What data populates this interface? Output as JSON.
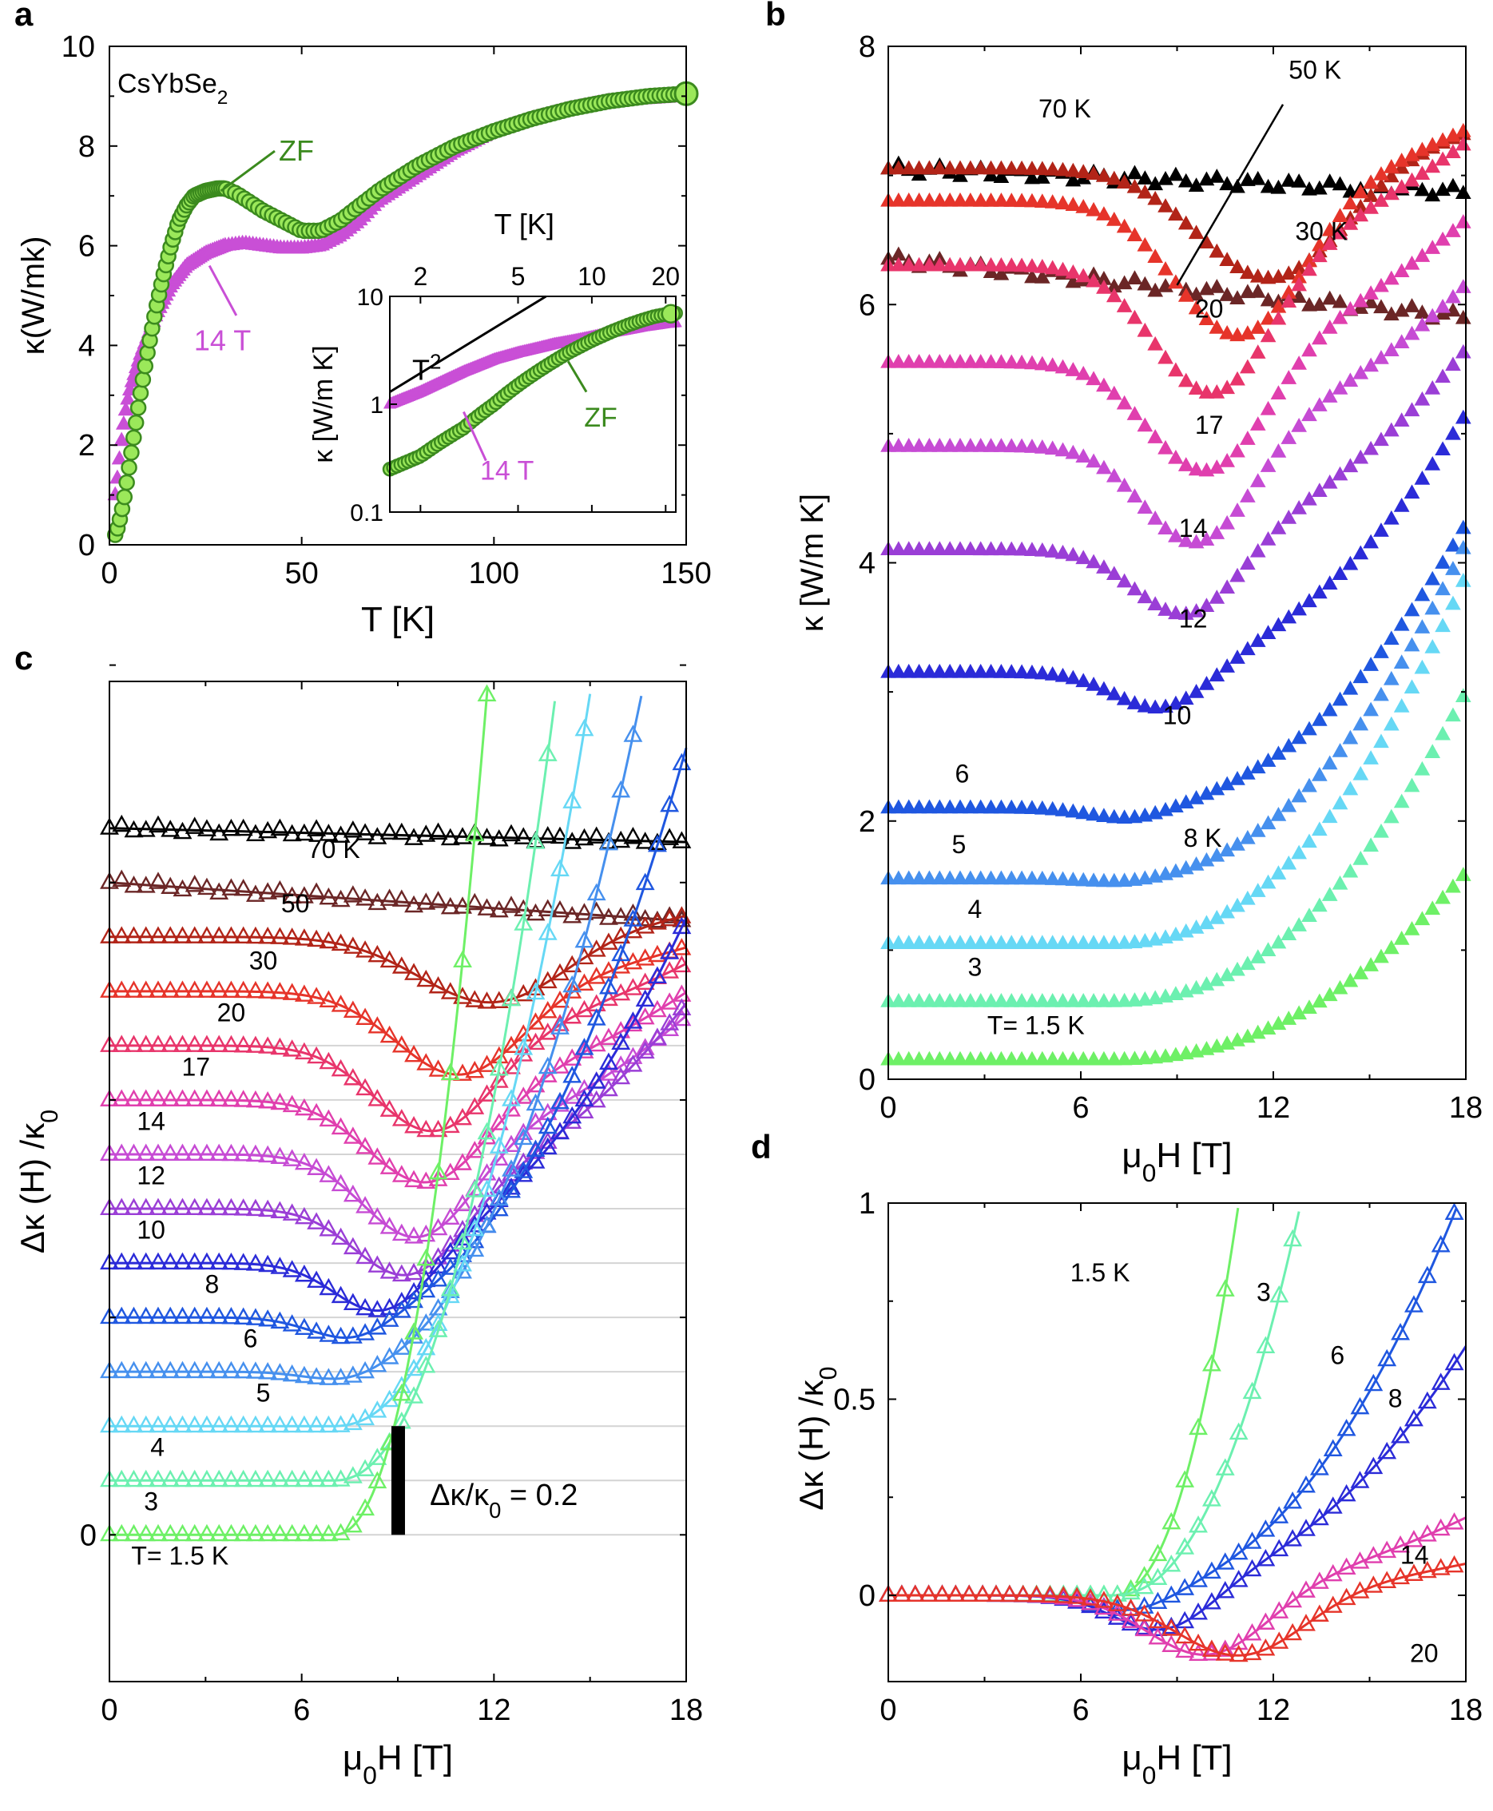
{
  "chart_data": [
    {
      "panel": "a",
      "type": "scatter",
      "title": "CsYbSe2",
      "title_parts": [
        "CsYbSe",
        "2"
      ],
      "xlabel": "T [K]",
      "ylabel_parts": [
        "κ",
        "(W/mk)"
      ],
      "xlim": [
        0,
        150
      ],
      "ylim": [
        0,
        10
      ],
      "xticks": [
        0,
        50,
        100,
        150
      ],
      "yticks": [
        0,
        2,
        4,
        6,
        8,
        10
      ],
      "series": [
        {
          "name": "ZF",
          "color": "#3b8a1e",
          "fill": "#9be85a",
          "marker": "circle",
          "x": [
            1.5,
            2,
            3,
            4,
            5,
            6,
            8,
            10,
            12,
            14,
            16,
            18,
            20,
            22,
            25,
            28,
            30,
            33,
            36,
            40,
            45,
            50,
            55,
            60,
            65,
            70,
            80,
            90,
            100,
            110,
            120,
            130,
            140,
            150
          ],
          "y": [
            0.2,
            0.3,
            0.6,
            1.0,
            1.5,
            2.0,
            3.0,
            3.9,
            4.7,
            5.4,
            6.0,
            6.5,
            6.8,
            7.0,
            7.1,
            7.15,
            7.15,
            7.05,
            6.9,
            6.7,
            6.5,
            6.3,
            6.3,
            6.5,
            6.8,
            7.1,
            7.6,
            8.0,
            8.3,
            8.55,
            8.75,
            8.9,
            9.0,
            9.05
          ]
        },
        {
          "name": "14 T",
          "color": "#b037c0",
          "fill": "#c94fd6",
          "marker": "triangle",
          "x": [
            1.5,
            2,
            3,
            4,
            5,
            6,
            8,
            10,
            12,
            14,
            16,
            18,
            20,
            25,
            30,
            35,
            40,
            45,
            50,
            55,
            60,
            65,
            70,
            80,
            90,
            100,
            110,
            120,
            130,
            140,
            150
          ],
          "y": [
            1.0,
            1.3,
            2.0,
            2.6,
            3.0,
            3.3,
            3.8,
            4.2,
            4.6,
            4.9,
            5.2,
            5.4,
            5.6,
            5.85,
            6.0,
            6.05,
            6.0,
            5.95,
            5.95,
            6.0,
            6.2,
            6.5,
            6.9,
            7.4,
            7.9,
            8.3,
            8.55,
            8.75,
            8.9,
            8.95,
            9.0
          ]
        }
      ],
      "annotations": [
        "ZF",
        "14 T"
      ],
      "inset": {
        "type": "line",
        "xlabel": "T [K]",
        "ylabel": "κ [W/m K]",
        "xscale": "log",
        "yscale": "log",
        "xlim": [
          1.5,
          22
        ],
        "ylim": [
          0.1,
          10
        ],
        "xticks": [
          2,
          5,
          10,
          20
        ],
        "yticks": [
          0.1,
          1,
          10
        ],
        "ytick_labels": [
          "0.1",
          "1",
          "10"
        ],
        "series": [
          {
            "name": "ZF",
            "color": "#3b8a1e",
            "fill": "#9be85a",
            "x": [
              1.5,
              2,
              3,
              4,
              5,
              6,
              7,
              8,
              10,
              12,
              14,
              16,
              18,
              20,
              22
            ],
            "y": [
              0.25,
              0.33,
              0.6,
              1.0,
              1.5,
              2.0,
              2.5,
              3.0,
              3.9,
              4.7,
              5.4,
              6.0,
              6.5,
              6.8,
              7.0
            ]
          },
          {
            "name": "14 T",
            "color": "#b037c0",
            "fill": "#c94fd6",
            "x": [
              1.5,
              2,
              3,
              4,
              5,
              6,
              7,
              8,
              10,
              12,
              14,
              16,
              18,
              20,
              22
            ],
            "y": [
              1.0,
              1.3,
              2.0,
              2.6,
              3.0,
              3.3,
              3.6,
              3.8,
              4.2,
              4.6,
              4.9,
              5.2,
              5.4,
              5.6,
              5.7
            ]
          },
          {
            "name": "T2",
            "color": "#000000",
            "x": [
              1.5,
              6.5
            ],
            "y": [
              1.3,
              24.4
            ]
          }
        ],
        "annotations": [
          "T",
          "2",
          "ZF",
          "14 T"
        ]
      }
    },
    {
      "panel": "b",
      "type": "line",
      "xlabel_parts": [
        "μ",
        "0",
        "H [T]"
      ],
      "ylabel": "κ [W/m K]",
      "xlim": [
        0,
        18
      ],
      "ylim": [
        0,
        8
      ],
      "xticks": [
        0,
        6,
        12,
        18
      ],
      "yticks": [
        0,
        2,
        4,
        6,
        8
      ],
      "series": [
        {
          "name": "70 K",
          "color": "#000000",
          "x": [
            0,
            18
          ],
          "base": 7.05,
          "dip": 0.0,
          "min": 10,
          "width": 3.0,
          "rise": 0.0,
          "slope": -0.01
        },
        {
          "name": "50 K",
          "color": "#6b2626",
          "x": [
            0,
            18
          ],
          "base": 6.35,
          "dip": 0.0,
          "min": 10,
          "width": 3.0,
          "rise": 0.0,
          "slope": -0.025
        },
        {
          "name": "30 K",
          "color": "#b22418",
          "x": [
            0,
            18
          ],
          "base": 7.05,
          "dip": 0.9,
          "min": 12,
          "width": 3.2,
          "rise": 0.3,
          "slope": 0.0
        },
        {
          "name": "20",
          "color": "#e6342a",
          "x": [
            0,
            18
          ],
          "base": 6.8,
          "dip": 1.1,
          "min": 11,
          "width": 2.8,
          "rise": 0.55,
          "slope": 0.0
        },
        {
          "name": "17",
          "color": "#e8356b",
          "x": [
            0,
            18
          ],
          "base": 6.3,
          "dip": 1.05,
          "min": 10.2,
          "width": 2.6,
          "rise": 0.95,
          "slope": 0.0
        },
        {
          "name": "14",
          "color": "#e03fae",
          "x": [
            0,
            18
          ],
          "base": 5.55,
          "dip": 0.9,
          "min": 10,
          "width": 2.6,
          "rise": 1.1,
          "slope": 0.0
        },
        {
          "name": "12",
          "color": "#c64bd4",
          "x": [
            0,
            18
          ],
          "base": 4.9,
          "dip": 0.8,
          "min": 9.7,
          "width": 2.4,
          "rise": 1.25,
          "slope": 0.0
        },
        {
          "name": "10",
          "color": "#9a3ed6",
          "x": [
            0,
            18
          ],
          "base": 4.1,
          "dip": 0.55,
          "min": 9.4,
          "width": 2.3,
          "rise": 1.55,
          "slope": 0.0
        },
        {
          "name": "8  K",
          "color": "#2b2bd8",
          "x": [
            0,
            18
          ],
          "base": 3.15,
          "dip": 0.3,
          "min": 8.6,
          "width": 2.1,
          "rise": 2.0,
          "slope": 0.0
        },
        {
          "name": "6",
          "color": "#1f57e0",
          "x": [
            0,
            18
          ],
          "base": 2.1,
          "dip": 0.08,
          "min": 7.5,
          "width": 1.8,
          "rise": 2.2,
          "slope": 0.0
        },
        {
          "name": "5",
          "color": "#4690ee",
          "x": [
            0,
            18
          ],
          "base": 1.55,
          "dip": 0.02,
          "min": 7,
          "width": 1.5,
          "rise": 2.6,
          "slope": 0.0
        },
        {
          "name": "4",
          "color": "#66d8f5",
          "x": [
            0,
            18
          ],
          "base": 1.05,
          "dip": 0.0,
          "min": 7,
          "width": 1.5,
          "rise": 2.85,
          "slope": 0.0
        },
        {
          "name": "3",
          "color": "#6cf0b0",
          "x": [
            0,
            18
          ],
          "base": 0.6,
          "dip": 0.0,
          "min": 7,
          "width": 1.5,
          "rise": 2.4,
          "slope": 0.0
        },
        {
          "name": "T= 1.5 K",
          "color": "#6ef066",
          "x": [
            0,
            18
          ],
          "base": 0.15,
          "dip": 0.0,
          "min": 7,
          "width": 1.5,
          "rise": 1.45,
          "slope": 0.0
        }
      ],
      "annotations": [
        "70 K",
        "50 K",
        "30 K",
        "20",
        "17",
        "14",
        "12",
        "10",
        "8  K",
        "6",
        "5",
        "4",
        "3",
        "T= 1.5 K"
      ]
    },
    {
      "panel": "c",
      "type": "line",
      "xlabel_parts": [
        "μ",
        "0",
        "H [T]"
      ],
      "ylabel_parts": [
        "Δ",
        "κ",
        " (H) /",
        "κ",
        "0"
      ],
      "xlim": [
        0,
        18
      ],
      "yticks": [
        0
      ],
      "xticks": [
        0,
        6,
        12,
        18
      ],
      "offset_step": 0.1,
      "scale_bar": {
        "value": 0.2,
        "label_parts": [
          "Δ",
          "κ",
          "/",
          "κ",
          "0",
          " = 0.2"
        ]
      },
      "series": [
        {
          "name": "70 K",
          "color": "#000000",
          "offset": 1.3
        },
        {
          "name": "50",
          "color": "#6b2626",
          "offset": 1.2
        },
        {
          "name": "30",
          "color": "#b22418",
          "offset": 1.1
        },
        {
          "name": "20",
          "color": "#e6342a",
          "offset": 1.0
        },
        {
          "name": "17",
          "color": "#e8356b",
          "offset": 0.9
        },
        {
          "name": "14",
          "color": "#e03fae",
          "offset": 0.8
        },
        {
          "name": "12",
          "color": "#c64bd4",
          "offset": 0.7
        },
        {
          "name": "10",
          "color": "#9a3ed6",
          "offset": 0.6
        },
        {
          "name": "8",
          "color": "#2b2bd8",
          "offset": 0.5
        },
        {
          "name": "6",
          "color": "#1f57e0",
          "offset": 0.4
        },
        {
          "name": "5",
          "color": "#4690ee",
          "offset": 0.3
        },
        {
          "name": "4",
          "color": "#66d8f5",
          "offset": 0.2
        },
        {
          "name": "3",
          "color": "#6cf0b0",
          "offset": 0.1
        },
        {
          "name": "T= 1.5 K",
          "color": "#6ef066",
          "offset": 0.0
        }
      ],
      "annotations": [
        "70 K",
        "50",
        "30",
        "20",
        "17",
        "14",
        "12",
        "10",
        "8",
        "6",
        "5",
        "4",
        "3",
        "T= 1.5 K"
      ]
    },
    {
      "panel": "d",
      "type": "line",
      "xlabel_parts": [
        "μ",
        "0",
        "H [T]"
      ],
      "ylabel_parts": [
        "Δ",
        "κ",
        " (H) /",
        "κ",
        "0"
      ],
      "xlim": [
        0,
        18
      ],
      "ylim": [
        -0.22,
        1.0
      ],
      "xticks": [
        0,
        6,
        12,
        18
      ],
      "yticks": [
        0,
        0.5,
        1
      ],
      "ytick_labels": [
        "0",
        "0.5",
        "1"
      ],
      "series": [
        {
          "name": "1.5 K",
          "color": "#6ef066"
        },
        {
          "name": "3",
          "color": "#6cf0b0"
        },
        {
          "name": "6",
          "color": "#1f57e0"
        },
        {
          "name": "8",
          "color": "#2b2bd8"
        },
        {
          "name": "14",
          "color": "#e03fae"
        },
        {
          "name": "20",
          "color": "#e6342a"
        }
      ],
      "annotations": [
        "1.5 K",
        "3",
        "6",
        "8",
        "14",
        "20"
      ]
    }
  ]
}
